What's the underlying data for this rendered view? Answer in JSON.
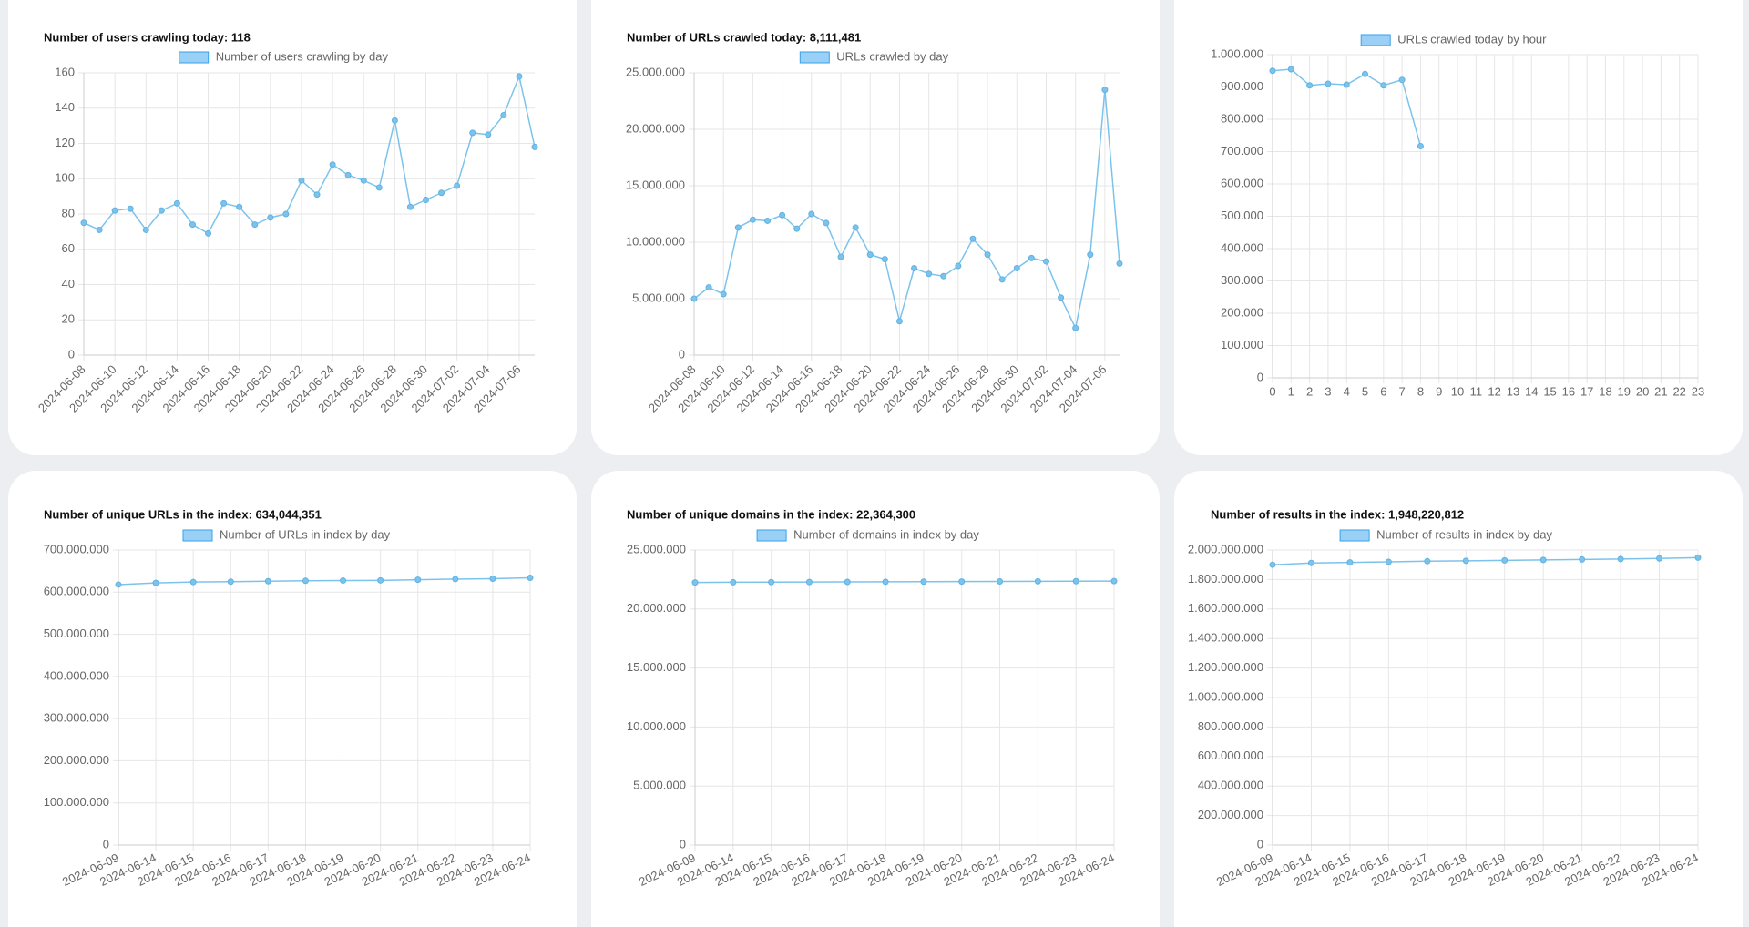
{
  "chart_data": [
    {
      "type": "line",
      "title": "Number of users crawling today: 118",
      "categories": [
        "2024-06-08",
        null,
        "2024-06-10",
        null,
        "2024-06-12",
        null,
        "2024-06-14",
        null,
        "2024-06-16",
        null,
        "2024-06-18",
        null,
        "2024-06-20",
        null,
        "2024-06-22",
        null,
        "2024-06-24",
        null,
        "2024-06-26",
        null,
        "2024-06-28",
        null,
        "2024-06-30",
        null,
        "2024-07-02",
        null,
        "2024-07-04",
        null,
        "2024-07-06",
        null
      ],
      "series": [
        {
          "name": "Number of users crawling by day",
          "color": "#7cc3ec",
          "values": [
            75,
            71,
            82,
            83,
            71,
            82,
            86,
            74,
            69,
            86,
            84,
            74,
            78,
            80,
            99,
            91,
            108,
            102,
            99,
            95,
            133,
            84,
            88,
            92,
            96,
            126,
            125,
            136,
            158,
            118
          ]
        }
      ],
      "ylim": [
        0,
        160
      ],
      "yticks": [
        0,
        20,
        40,
        60,
        80,
        100,
        120,
        140,
        160
      ],
      "grid": true
    },
    {
      "type": "line",
      "title": "Number of URLs crawled today: 8,111,481",
      "categories": [
        "2024-06-08",
        null,
        "2024-06-10",
        null,
        "2024-06-12",
        null,
        "2024-06-14",
        null,
        "2024-06-16",
        null,
        "2024-06-18",
        null,
        "2024-06-20",
        null,
        "2024-06-22",
        null,
        "2024-06-24",
        null,
        "2024-06-26",
        null,
        "2024-06-28",
        null,
        "2024-06-30",
        null,
        "2024-07-02",
        null,
        "2024-07-04",
        null,
        "2024-07-06",
        null
      ],
      "series": [
        {
          "name": "URLs crawled by day",
          "color": "#7cc3ec",
          "values": [
            5000000,
            6000000,
            5400000,
            11300000,
            12000000,
            11900000,
            12400000,
            11200000,
            12500000,
            11700000,
            8700000,
            11300000,
            8900000,
            8500000,
            3000000,
            7700000,
            7200000,
            7000000,
            7900000,
            10300000,
            8900000,
            6700000,
            7700000,
            8600000,
            8300000,
            5100000,
            2400000,
            8900000,
            23500000,
            8111481
          ]
        }
      ],
      "ylim": [
        0,
        25000000
      ],
      "yticks": [
        0,
        {
          "value": 5000000,
          "label": "5.000.000"
        },
        {
          "value": 10000000,
          "label": "10.000.000"
        },
        {
          "value": 15000000,
          "label": "15.000.000"
        },
        {
          "value": 20000000,
          "label": "20.000.000"
        },
        {
          "value": 25000000,
          "label": "25.000.000"
        }
      ],
      "grid": true
    },
    {
      "type": "line",
      "x": [
        0,
        1,
        2,
        3,
        4,
        5,
        6,
        7,
        8,
        9,
        10,
        11,
        12,
        13,
        14,
        15,
        16,
        17,
        18,
        19,
        20,
        21,
        22,
        23
      ],
      "xlim": [
        0,
        23
      ],
      "series": [
        {
          "name": "URLs crawled today by hour",
          "color": "#7cc3ec",
          "values": [
            950000,
            955000,
            905000,
            910000,
            907000,
            940000,
            905000,
            922000,
            717000,
            null,
            null,
            null,
            null,
            null,
            null,
            null,
            null,
            null,
            null,
            null,
            null,
            null,
            null,
            null
          ]
        }
      ],
      "ylim": [
        0,
        1000000
      ],
      "yticks": [
        0,
        {
          "value": 100000,
          "label": "100.000"
        },
        {
          "value": 200000,
          "label": "200.000"
        },
        {
          "value": 300000,
          "label": "300.000"
        },
        {
          "value": 400000,
          "label": "400.000"
        },
        {
          "value": 500000,
          "label": "500.000"
        },
        {
          "value": 600000,
          "label": "600.000"
        },
        {
          "value": 700000,
          "label": "700.000"
        },
        {
          "value": 800000,
          "label": "800.000"
        },
        {
          "value": 900000,
          "label": "900.000"
        },
        {
          "value": 1000000,
          "label": "1.000.000"
        }
      ],
      "grid": true
    },
    {
      "type": "line",
      "title": "Number of unique URLs in the index: 634,044,351",
      "categories": [
        "2024-06-09",
        "2024-06-14",
        "2024-06-15",
        "2024-06-16",
        "2024-06-17",
        "2024-06-18",
        "2024-06-19",
        "2024-06-20",
        "2024-06-21",
        "2024-06-22",
        "2024-06-23",
        "2024-06-24"
      ],
      "series": [
        {
          "name": "Number of URLs in index by day",
          "color": "#7cc3ec",
          "values": [
            618000000,
            622000000,
            624000000,
            625000000,
            626000000,
            627000000,
            627500000,
            628000000,
            629500000,
            631000000,
            632000000,
            634044351
          ]
        }
      ],
      "ylim": [
        0,
        700000000
      ],
      "yticks": [
        0,
        {
          "value": 100000000,
          "label": "100.000.000"
        },
        {
          "value": 200000000,
          "label": "200.000.000"
        },
        {
          "value": 300000000,
          "label": "300.000.000"
        },
        {
          "value": 400000000,
          "label": "400.000.000"
        },
        {
          "value": 500000000,
          "label": "500.000.000"
        },
        {
          "value": 600000000,
          "label": "600.000.000"
        },
        {
          "value": 700000000,
          "label": "700.000.000"
        }
      ],
      "grid": true
    },
    {
      "type": "line",
      "title": "Number of unique domains in the index: 22,364,300",
      "categories": [
        "2024-06-09",
        "2024-06-14",
        "2024-06-15",
        "2024-06-16",
        "2024-06-17",
        "2024-06-18",
        "2024-06-19",
        "2024-06-20",
        "2024-06-21",
        "2024-06-22",
        "2024-06-23",
        "2024-06-24"
      ],
      "series": [
        {
          "name": "Number of domains in index by day",
          "color": "#7cc3ec",
          "values": [
            22250000,
            22270000,
            22280000,
            22290000,
            22300000,
            22310000,
            22320000,
            22330000,
            22340000,
            22350000,
            22360000,
            22364300
          ]
        }
      ],
      "ylim": [
        0,
        25000000
      ],
      "yticks": [
        0,
        {
          "value": 5000000,
          "label": "5.000.000"
        },
        {
          "value": 10000000,
          "label": "10.000.000"
        },
        {
          "value": 15000000,
          "label": "15.000.000"
        },
        {
          "value": 20000000,
          "label": "20.000.000"
        },
        {
          "value": 25000000,
          "label": "25.000.000"
        }
      ],
      "grid": true
    },
    {
      "type": "line",
      "title": "Number of results in the index: 1,948,220,812",
      "categories": [
        "2024-06-09",
        "2024-06-14",
        "2024-06-15",
        "2024-06-16",
        "2024-06-17",
        "2024-06-18",
        "2024-06-19",
        "2024-06-20",
        "2024-06-21",
        "2024-06-22",
        "2024-06-23",
        "2024-06-24"
      ],
      "series": [
        {
          "name": "Number of results in index by day",
          "color": "#7cc3ec",
          "values": [
            1900000000,
            1912000000,
            1916000000,
            1920000000,
            1924000000,
            1927000000,
            1930000000,
            1933000000,
            1936000000,
            1939000000,
            1943000000,
            1948220812
          ]
        }
      ],
      "ylim": [
        0,
        2000000000
      ],
      "yticks": [
        0,
        {
          "value": 200000000,
          "label": "200.000.000"
        },
        {
          "value": 400000000,
          "label": "400.000.000"
        },
        {
          "value": 600000000,
          "label": "600.000.000"
        },
        {
          "value": 800000000,
          "label": "800.000.000"
        },
        {
          "value": 1000000000,
          "label": "1.000.000.000"
        },
        {
          "value": 1200000000,
          "label": "1.200.000.000"
        },
        {
          "value": 1400000000,
          "label": "1.400.000.000"
        },
        {
          "value": 1600000000,
          "label": "1.600.000.000"
        },
        {
          "value": 1800000000,
          "label": "1.800.000.000"
        },
        {
          "value": 2000000000,
          "label": "2.000.000.000"
        }
      ],
      "grid": true
    }
  ]
}
